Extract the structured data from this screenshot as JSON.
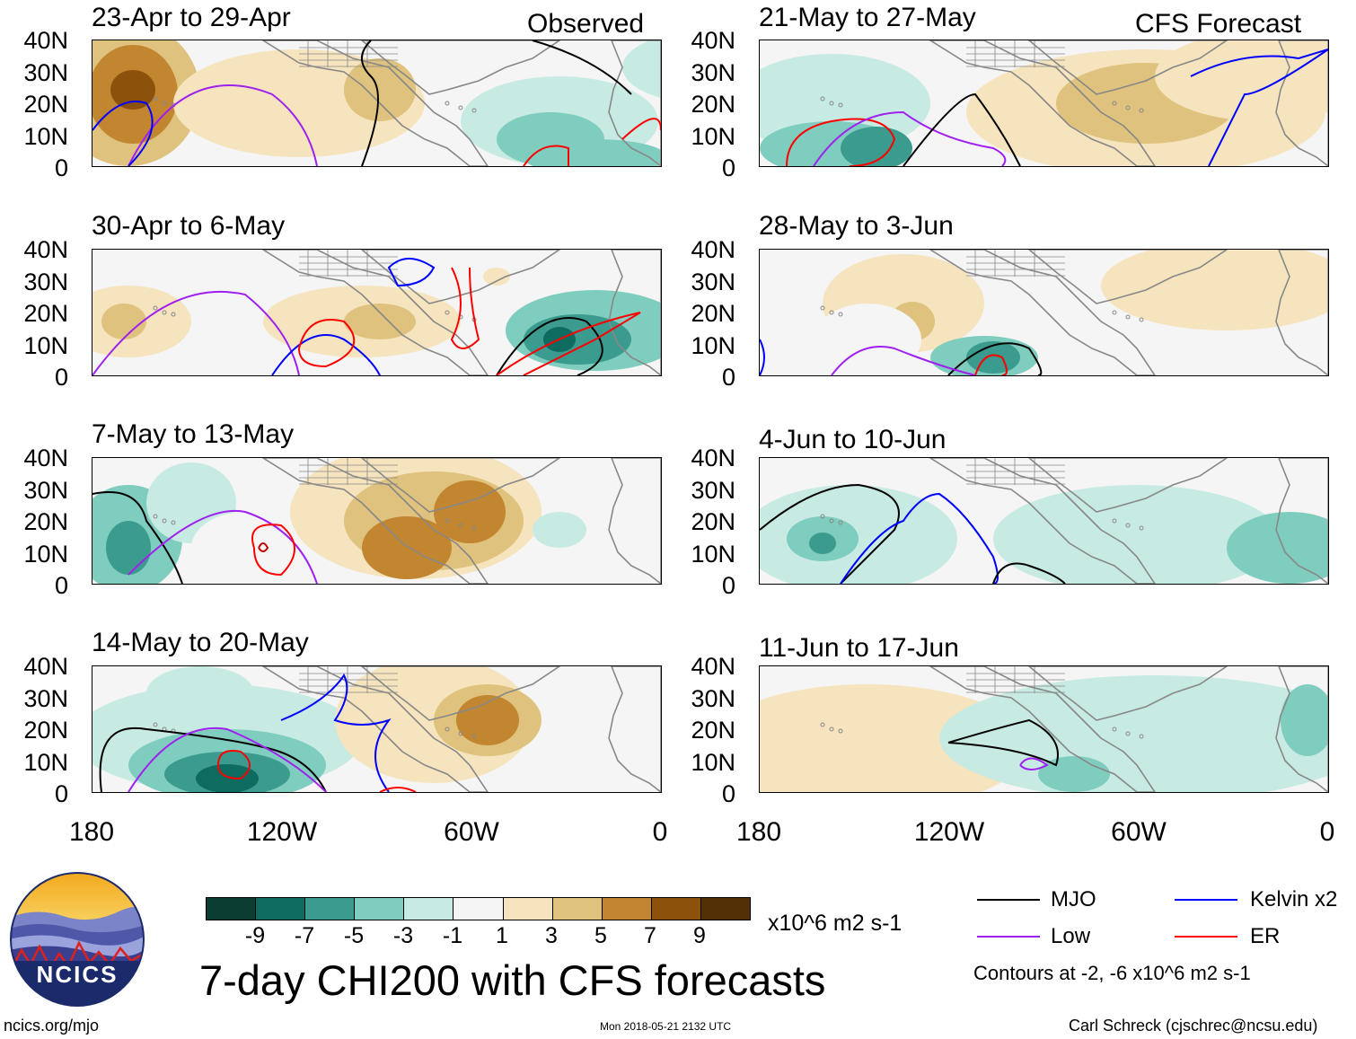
{
  "labels": {
    "observed": "Observed",
    "forecast": "CFS Forecast"
  },
  "lat_ticks": [
    "40N",
    "30N",
    "20N",
    "10N",
    "0"
  ],
  "lon_ticks": [
    "180",
    "120W",
    "60W",
    "0"
  ],
  "panels": [
    {
      "title": "23-Apr to 29-Apr",
      "kind": "observed"
    },
    {
      "title": "30-Apr to 6-May",
      "kind": "observed"
    },
    {
      "title": "7-May to 13-May",
      "kind": "observed"
    },
    {
      "title": "14-May to 20-May",
      "kind": "observed"
    },
    {
      "title": "21-May to 27-May",
      "kind": "forecast"
    },
    {
      "title": "28-May to 3-Jun",
      "kind": "forecast"
    },
    {
      "title": "4-Jun to 10-Jun",
      "kind": "forecast"
    },
    {
      "title": "11-Jun to 17-Jun",
      "kind": "forecast"
    }
  ],
  "colorbar": {
    "colors": [
      "#0b3d33",
      "#0e6b5f",
      "#3a9b8e",
      "#7fcdbf",
      "#c7eae3",
      "#f5f5f5",
      "#f5e4bd",
      "#dfc27d",
      "#c28530",
      "#8c510a",
      "#543005"
    ],
    "labels": [
      "-9",
      "-7",
      "-5",
      "-3",
      "-1",
      "1",
      "3",
      "5",
      "7",
      "9"
    ],
    "units": "x10^6 m2 s-1"
  },
  "logo": {
    "text": "NCICS",
    "url": "ncics.org/mjo"
  },
  "main_title": "7-day CHI200 with CFS forecasts",
  "timestamp": "Mon 2018-05-21 2132 UTC",
  "credit": "Carl Schreck (cjschrec@ncsu.edu)",
  "legend": {
    "items": [
      {
        "label": "MJO",
        "color": "#000000"
      },
      {
        "label": "Kelvin x2",
        "color": "#0000ff"
      },
      {
        "label": "Low",
        "color": "#a020f0"
      },
      {
        "label": "ER",
        "color": "#ff0000"
      }
    ],
    "note": "Contours at -2, -6 x10^6 m2 s-1"
  },
  "land_color": "#888888"
}
